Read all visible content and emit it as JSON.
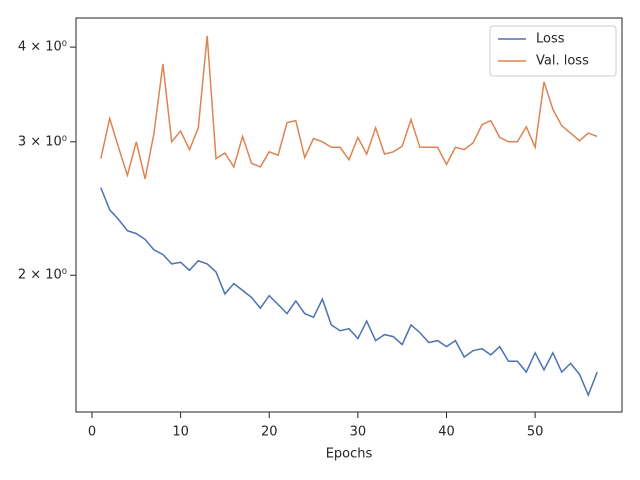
{
  "chart_data": {
    "type": "line",
    "xlabel": "Epochs",
    "x": [
      1,
      2,
      3,
      4,
      5,
      6,
      7,
      8,
      9,
      10,
      11,
      12,
      13,
      14,
      15,
      16,
      17,
      18,
      19,
      20,
      21,
      22,
      23,
      24,
      25,
      26,
      27,
      28,
      29,
      30,
      31,
      32,
      33,
      34,
      35,
      36,
      37,
      38,
      39,
      40,
      41,
      42,
      43,
      44,
      45,
      46,
      47,
      48,
      49,
      50,
      51,
      52,
      53,
      54,
      55,
      56,
      57
    ],
    "series": [
      {
        "name": "Loss",
        "color": "#4c72b0",
        "values": [
          2.61,
          2.44,
          2.37,
          2.29,
          2.27,
          2.23,
          2.16,
          2.13,
          2.07,
          2.08,
          2.03,
          2.09,
          2.07,
          2.02,
          1.89,
          1.95,
          1.91,
          1.87,
          1.81,
          1.88,
          1.83,
          1.78,
          1.85,
          1.78,
          1.76,
          1.86,
          1.72,
          1.69,
          1.7,
          1.65,
          1.74,
          1.64,
          1.67,
          1.66,
          1.62,
          1.72,
          1.68,
          1.63,
          1.64,
          1.61,
          1.64,
          1.56,
          1.59,
          1.6,
          1.57,
          1.61,
          1.54,
          1.54,
          1.49,
          1.58,
          1.5,
          1.58,
          1.49,
          1.53,
          1.48,
          1.39,
          1.49
        ]
      },
      {
        "name": "Val. loss",
        "color": "#dd8452",
        "values": [
          2.85,
          3.22,
          2.95,
          2.71,
          3.0,
          2.68,
          3.08,
          3.8,
          3.0,
          3.1,
          2.93,
          3.13,
          4.14,
          2.85,
          2.9,
          2.78,
          3.05,
          2.81,
          2.78,
          2.91,
          2.88,
          3.18,
          3.2,
          2.86,
          3.03,
          3.0,
          2.95,
          2.95,
          2.84,
          3.04,
          2.89,
          3.13,
          2.89,
          2.91,
          2.96,
          3.21,
          2.95,
          2.95,
          2.95,
          2.8,
          2.95,
          2.93,
          2.99,
          3.16,
          3.2,
          3.04,
          3.0,
          3.0,
          3.14,
          2.95,
          3.6,
          3.31,
          3.15,
          3.08,
          3.01,
          3.08,
          3.05
        ]
      }
    ],
    "xlim": [
      -1.8,
      59.8
    ],
    "xticks": [
      0,
      10,
      20,
      30,
      40,
      50
    ],
    "ylim": [
      1.32,
      4.37
    ],
    "ylog": true,
    "yticks": [
      {
        "value": 2,
        "label": "2 × 10⁰"
      },
      {
        "value": 3,
        "label": "3 × 10⁰"
      },
      {
        "value": 4,
        "label": "4 × 10⁰"
      }
    ],
    "legend": "upper right"
  }
}
